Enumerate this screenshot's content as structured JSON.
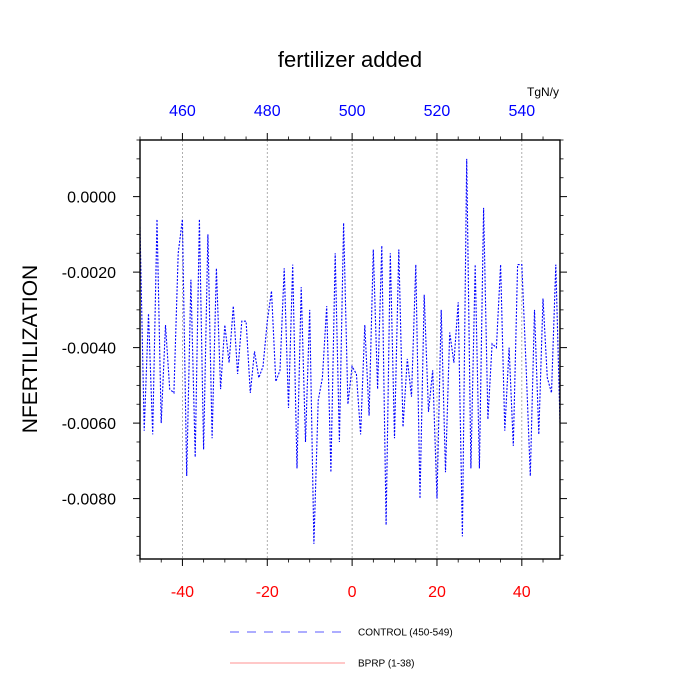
{
  "chart_data": {
    "type": "line",
    "title": "fertilizer added",
    "ylabel": "NFERTILIZATION",
    "top_axis_unit": "TgN/y",
    "xlim": [
      -50,
      49
    ],
    "ylim": [
      -0.0096,
      0.0015
    ],
    "x_ticks": [
      -40,
      -20,
      0,
      20,
      40
    ],
    "x_tick_labels": [
      "-40",
      "-20",
      "0",
      "20",
      "40"
    ],
    "top_ticks": [
      -40,
      -20,
      0,
      20,
      40
    ],
    "top_tick_labels": [
      "460",
      "480",
      "500",
      "520",
      "540"
    ],
    "y_ticks": [
      0.0,
      -0.002,
      -0.004,
      -0.006,
      -0.008
    ],
    "y_tick_labels": [
      "0.0000",
      "-0.0020",
      "-0.0040",
      "-0.0060",
      "-0.0080"
    ],
    "vertical_gridlines": [
      -40,
      -20,
      0,
      20,
      40
    ],
    "series": [
      {
        "name": "CONTROL (450-549)",
        "color": "#0000ff",
        "style": "dashed",
        "x": [
          -50,
          -49,
          -48,
          -47,
          -46,
          -45,
          -44,
          -43,
          -42,
          -41,
          -40,
          -39,
          -38,
          -37,
          -36,
          -35,
          -34,
          -33,
          -32,
          -31,
          -30,
          -29,
          -28,
          -27,
          -26,
          -25,
          -24,
          -23,
          -22,
          -21,
          -20,
          -19,
          -18,
          -17,
          -16,
          -15,
          -14,
          -13,
          -12,
          -11,
          -10,
          -9,
          -8,
          -7,
          -6,
          -5,
          -4,
          -3,
          -2,
          -1,
          0,
          1,
          2,
          3,
          4,
          5,
          6,
          7,
          8,
          9,
          10,
          11,
          12,
          13,
          14,
          15,
          16,
          17,
          18,
          19,
          20,
          21,
          22,
          23,
          24,
          25,
          26,
          27,
          28,
          29,
          30,
          31,
          32,
          33,
          34,
          35,
          36,
          37,
          38,
          39,
          40,
          41,
          42,
          43,
          44,
          45,
          46,
          47,
          48,
          49
        ],
        "y": [
          -0.0008,
          -0.0062,
          -0.0031,
          -0.0063,
          -0.0006,
          -0.006,
          -0.0034,
          -0.0051,
          -0.0052,
          -0.0015,
          -0.0006,
          -0.0074,
          -0.0022,
          -0.0069,
          -0.0006,
          -0.0067,
          -0.001,
          -0.0064,
          -0.0019,
          -0.0051,
          -0.0034,
          -0.0044,
          -0.0029,
          -0.0047,
          -0.0033,
          -0.0033,
          -0.0052,
          -0.0041,
          -0.0048,
          -0.0045,
          -0.0033,
          -0.0025,
          -0.0049,
          -0.0046,
          -0.0019,
          -0.0056,
          -0.0018,
          -0.0072,
          -0.0024,
          -0.0065,
          -0.003,
          -0.0092,
          -0.0054,
          -0.0048,
          -0.0029,
          -0.0073,
          -0.0015,
          -0.0065,
          -0.0007,
          -0.0055,
          -0.0045,
          -0.0047,
          -0.0063,
          -0.0034,
          -0.0058,
          -0.0014,
          -0.0051,
          -0.0013,
          -0.0087,
          -0.0015,
          -0.0064,
          -0.0014,
          -0.0061,
          -0.0043,
          -0.0053,
          -0.0018,
          -0.008,
          -0.0026,
          -0.0057,
          -0.0046,
          -0.008,
          -0.003,
          -0.0073,
          -0.0036,
          -0.0044,
          -0.0028,
          -0.009,
          0.001,
          -0.0072,
          -0.0018,
          -0.0072,
          -0.0003,
          -0.0059,
          -0.0039,
          -0.004,
          -0.0018,
          -0.0062,
          -0.004,
          -0.0066,
          -0.0018,
          -0.0018,
          -0.0045,
          -0.0074,
          -0.003,
          -0.0063,
          -0.0027,
          -0.0048,
          -0.0052,
          -0.0018,
          -0.006
        ]
      },
      {
        "name": "BPRP (1-38)",
        "color": "#ff6b6b",
        "style": "solid",
        "x": [],
        "y": []
      }
    ],
    "legend": {
      "placement": "bottom",
      "entries": [
        "CONTROL (450-549)",
        "BPRP (1-38)"
      ]
    }
  }
}
